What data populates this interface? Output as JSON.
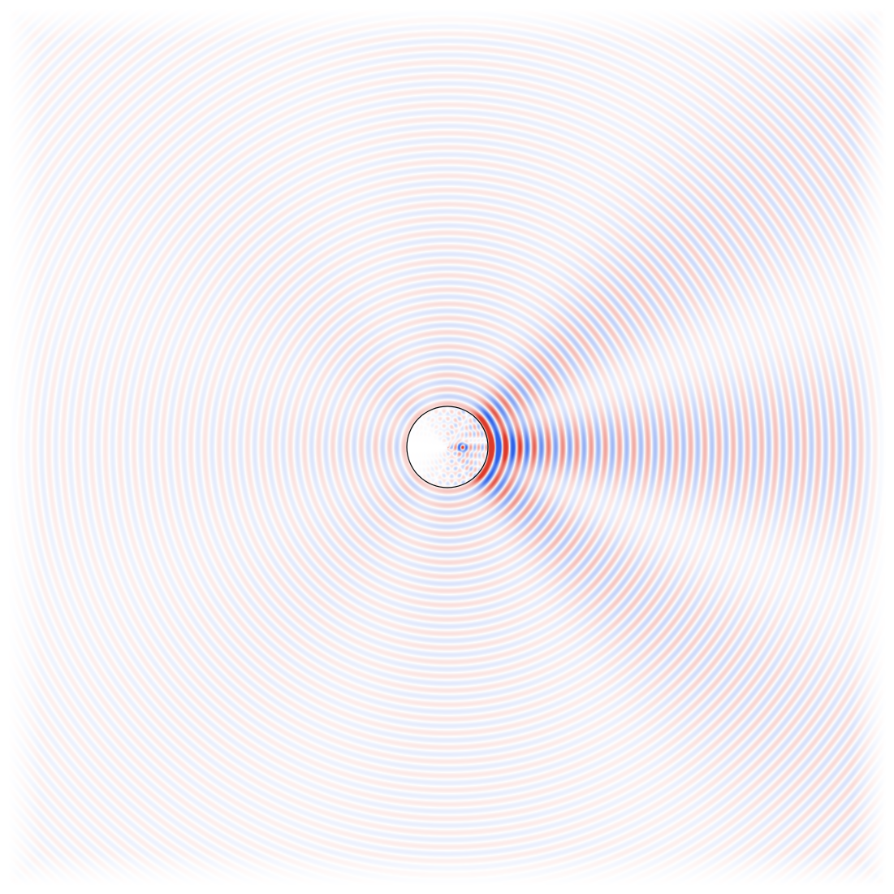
{
  "figure": {
    "kind": "wave-scattering-field",
    "colormap": {
      "positive": "#dc3a2a",
      "negative": "#2f62e6",
      "zero": "#ffffff"
    },
    "outline_color": "#000000",
    "background": "#ffffff"
  }
}
